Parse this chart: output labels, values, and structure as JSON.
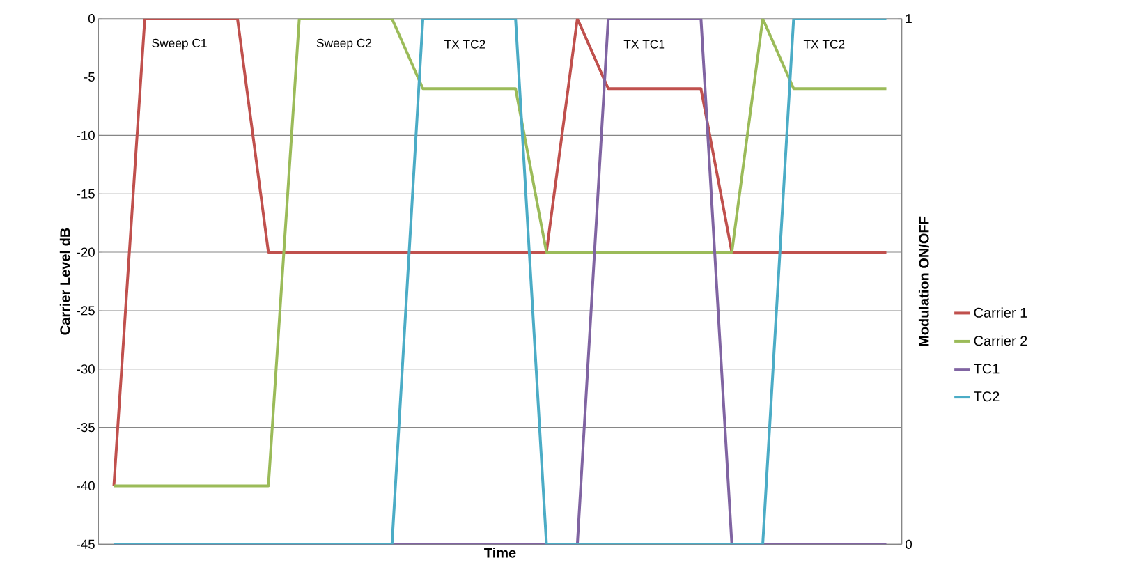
{
  "chart_data": {
    "type": "line",
    "xlabel": "Time",
    "ylabel": "Carrier Level dB",
    "y2label": "Modulation ON/OFF",
    "categories": [
      null,
      null,
      null,
      null,
      null,
      null,
      null,
      null,
      null,
      null,
      null,
      null,
      null,
      null,
      null,
      null,
      null,
      null,
      null,
      null,
      null,
      null,
      null,
      null,
      null,
      null
    ],
    "series": [
      {
        "name": "Carrier 1",
        "color": "#c0504d",
        "values": [
          -40,
          0,
          0,
          0,
          0,
          -20,
          -20,
          -20,
          -20,
          -20,
          -20,
          -20,
          -20,
          -20,
          -20,
          0,
          -6,
          -6,
          -6,
          -6,
          -20,
          -20,
          -20,
          -20,
          -20,
          -20
        ]
      },
      {
        "name": "Carrier 2",
        "color": "#9bbb59",
        "values": [
          -40,
          -40,
          -40,
          -40,
          -40,
          -40,
          0,
          0,
          0,
          0,
          -6,
          -6,
          -6,
          -6,
          -20,
          -20,
          -20,
          -20,
          -20,
          -20,
          -20,
          0,
          -6,
          -6,
          -6,
          -6
        ]
      },
      {
        "name": "TC1",
        "color": "#8064a2",
        "axis": "y2",
        "values": [
          0,
          0,
          0,
          0,
          0,
          0,
          0,
          0,
          0,
          0,
          0,
          0,
          0,
          0,
          0,
          0,
          1,
          1,
          1,
          1,
          0,
          0,
          0,
          0,
          0,
          0
        ]
      },
      {
        "name": "TC2",
        "color": "#4bacc6",
        "axis": "y2",
        "values": [
          0,
          0,
          0,
          0,
          0,
          0,
          0,
          0,
          0,
          0,
          1,
          1,
          1,
          1,
          0,
          0,
          0,
          0,
          0,
          0,
          0,
          0,
          1,
          1,
          1,
          1
        ]
      }
    ],
    "ylim": [
      -45,
      0
    ],
    "yticks": [
      -45,
      -40,
      -35,
      -30,
      -25,
      -20,
      -15,
      -10,
      -5,
      0
    ],
    "y2lim": [
      0,
      1
    ],
    "y2ticks": [
      0,
      1
    ],
    "grid": "y",
    "legend": "right",
    "marker": "none",
    "line_style": "solid",
    "annotations": [
      "Sweep C1",
      "Sweep C2",
      "TX TC2",
      "TX TC1",
      "TX TC2"
    ]
  }
}
